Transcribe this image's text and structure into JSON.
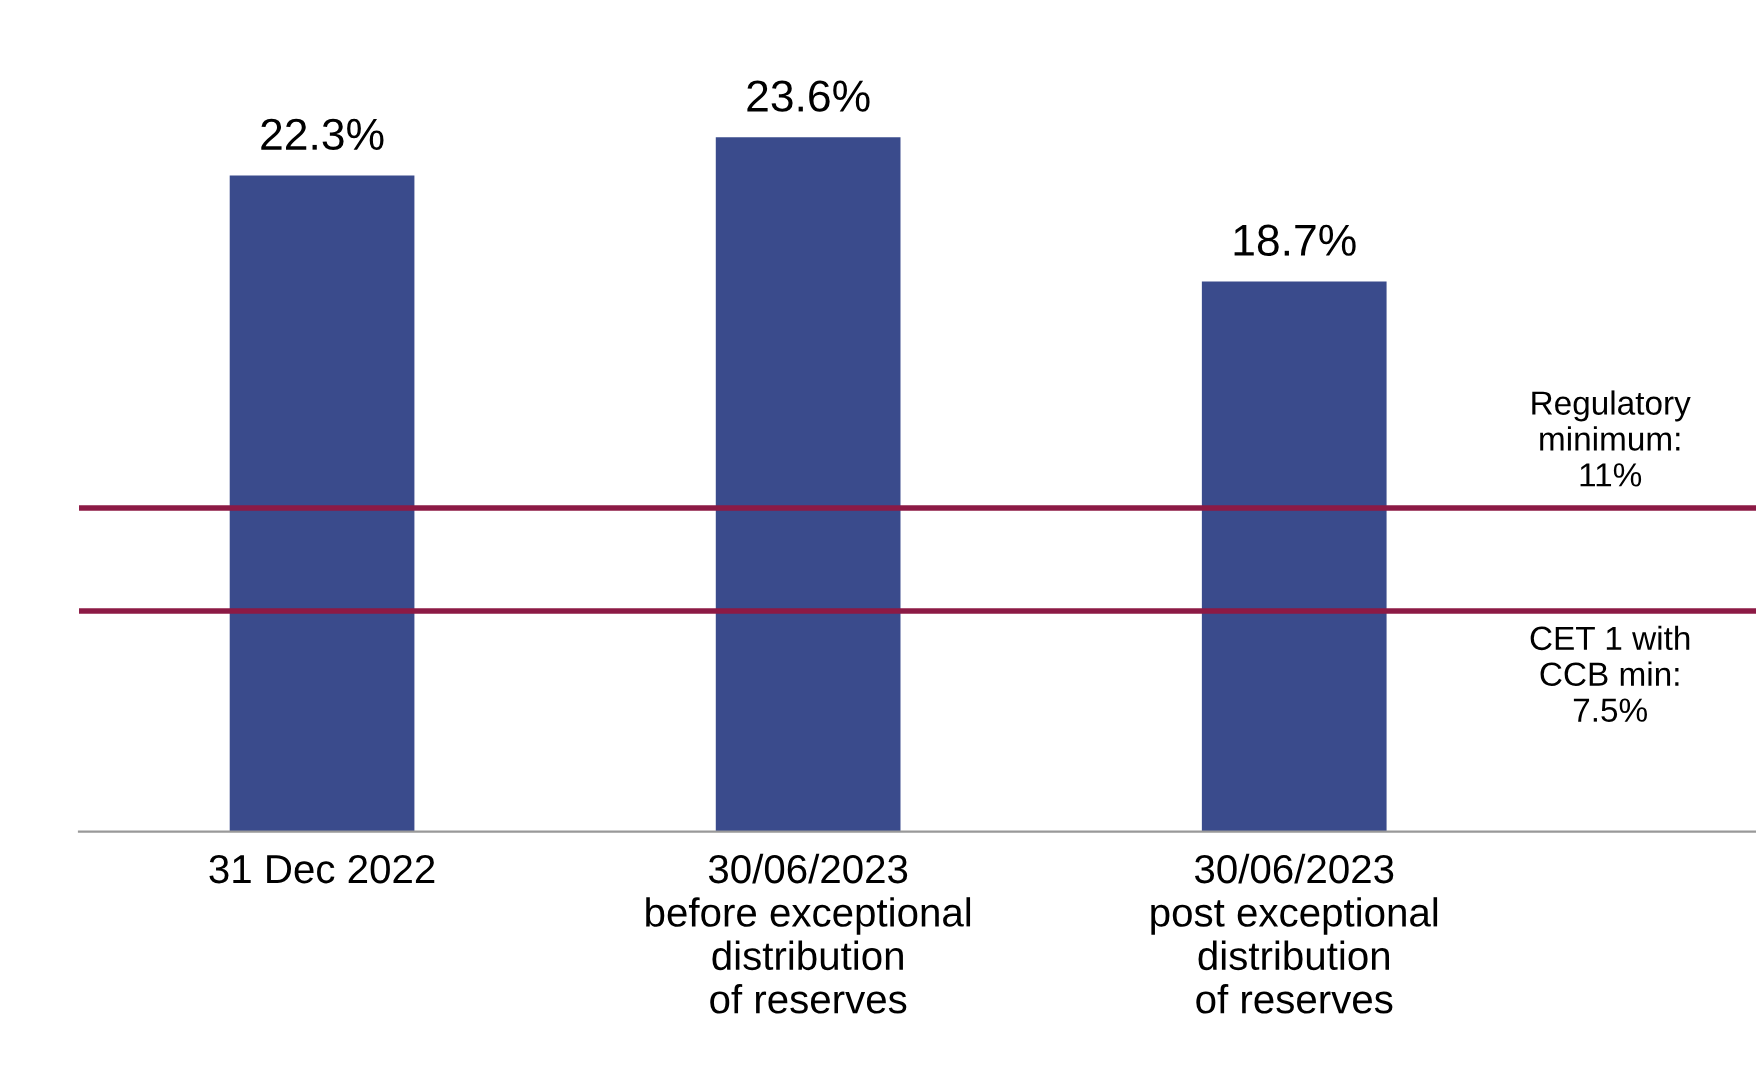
{
  "chart_data": {
    "type": "bar",
    "categories": [
      "31 Dec 2022",
      "30/06/2023\nbefore exceptional\ndistribution\nof reserves",
      "30/06/2023\npost exceptional\ndistribution\nof reserves"
    ],
    "values": [
      22.3,
      23.6,
      18.7
    ],
    "value_labels": [
      "22.3%",
      "23.6%",
      "18.7%"
    ],
    "color": "#3a4b8c",
    "ref_lines": [
      {
        "axis": "y",
        "value": 11,
        "label": "Regulatory\nminimum:\n11%",
        "color": "#8c1a45",
        "line_style": "solid"
      },
      {
        "axis": "y",
        "value": 7.5,
        "label": "CET 1 with\nCCB min:\n7.5%",
        "color": "#8c1a45",
        "line_style": "solid"
      }
    ],
    "tick_labels": "x",
    "grid": false,
    "legend": false
  }
}
